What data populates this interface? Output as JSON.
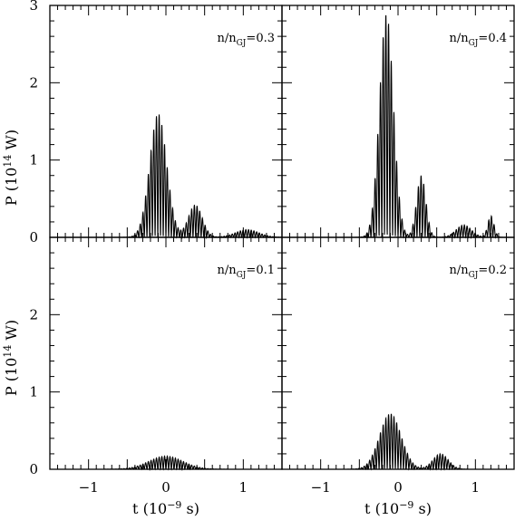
{
  "chart_data": {
    "type": "line",
    "layout": "2x2 grid of panels sharing axes",
    "xlabel": {
      "main": "t",
      "unit": "(10",
      "exp": "−9",
      "tail": " s)"
    },
    "ylabel": {
      "main": "P",
      "unit": "(10",
      "exp": "14",
      "tail": " W)"
    },
    "xlim": [
      -1.5,
      1.5
    ],
    "ylim": [
      0,
      3
    ],
    "x_major_ticks": [
      -1,
      0,
      1
    ],
    "x_tick_labels": [
      "−1",
      "0",
      "1"
    ],
    "y_major_ticks": [
      0,
      1,
      2,
      3
    ],
    "panels": [
      {
        "position": "top-left",
        "label": {
          "prefix": "n/n",
          "sub": "GJ",
          "suffix": "=0.3"
        },
        "y_tick_labels": [
          "0",
          "1",
          "2",
          "3"
        ],
        "oscillation_period": 0.035,
        "envelope": [
          {
            "center": -0.1,
            "width": 0.11,
            "amplitude": 1.6
          },
          {
            "center": 0.38,
            "width": 0.09,
            "amplitude": 0.42
          },
          {
            "center": 1.05,
            "width": 0.15,
            "amplitude": 0.1
          }
        ]
      },
      {
        "position": "top-right",
        "label": {
          "prefix": "n/n",
          "sub": "GJ",
          "suffix": "=0.4"
        },
        "y_tick_labels": [],
        "oscillation_period": 0.035,
        "envelope": [
          {
            "center": -0.15,
            "width": 0.09,
            "amplitude": 2.9
          },
          {
            "center": 0.3,
            "width": 0.06,
            "amplitude": 0.8
          },
          {
            "center": 0.85,
            "width": 0.1,
            "amplitude": 0.16
          },
          {
            "center": 1.2,
            "width": 0.04,
            "amplitude": 0.28
          }
        ]
      },
      {
        "position": "bottom-left",
        "label": {
          "prefix": "n/n",
          "sub": "GJ",
          "suffix": "=0.1"
        },
        "y_tick_labels": [
          "0",
          "1",
          "2"
        ],
        "oscillation_period": 0.035,
        "envelope": [
          {
            "center": 0.0,
            "width": 0.22,
            "amplitude": 0.17
          }
        ]
      },
      {
        "position": "bottom-right",
        "label": {
          "prefix": "n/n",
          "sub": "GJ",
          "suffix": "=0.2"
        },
        "y_tick_labels": [],
        "oscillation_period": 0.035,
        "envelope": [
          {
            "center": -0.1,
            "width": 0.14,
            "amplitude": 0.72
          },
          {
            "center": 0.55,
            "width": 0.1,
            "amplitude": 0.2
          }
        ]
      }
    ]
  }
}
